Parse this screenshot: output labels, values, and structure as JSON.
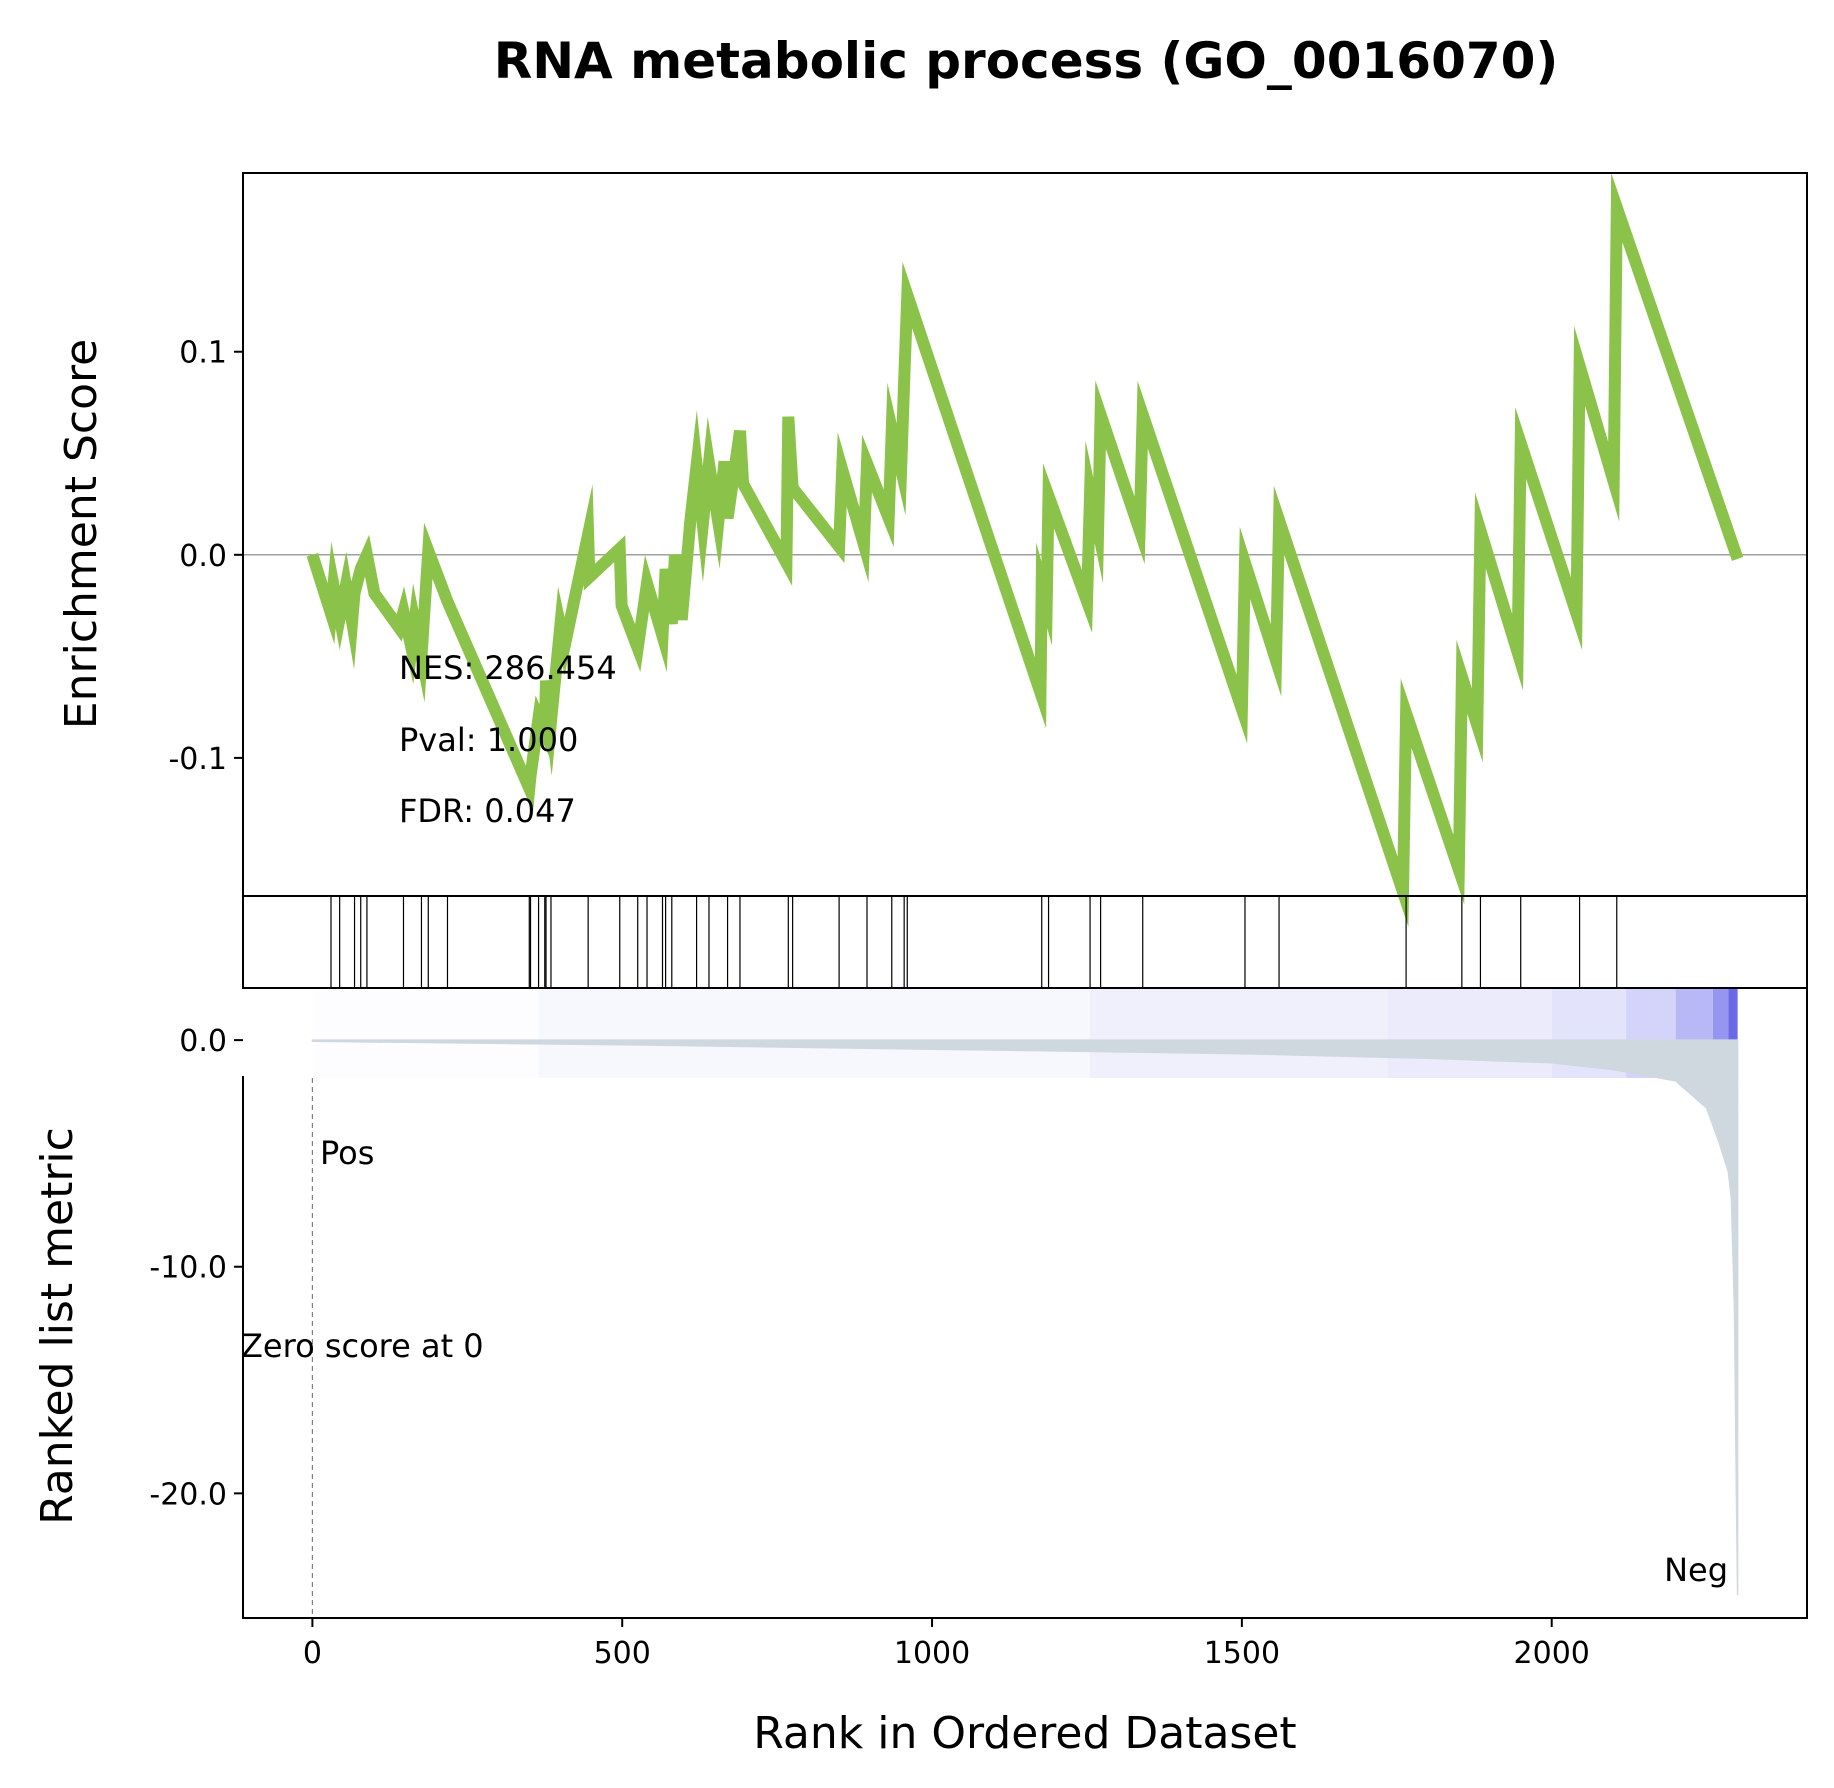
{
  "chart_data": {
    "type": "line",
    "title": "RNA metabolic process (GO_0016070)",
    "xlabel": "Rank in Ordered Dataset",
    "es_panel": {
      "ylabel": "Enrichment Score",
      "yticks": [
        0.1,
        0.0,
        -0.1
      ],
      "ytick_labels": [
        "0.1",
        "0.0",
        "-0.1"
      ],
      "ylim": [
        -0.168,
        0.188
      ],
      "line_color": "#8bc34a",
      "zero_line": true,
      "series": {
        "name": "",
        "x": [
          0,
          30,
          34,
          44,
          54,
          64,
          68,
          78,
          88,
          100,
          140,
          147,
          160,
          165,
          176,
          187,
          218,
          350,
          352,
          365,
          375,
          377,
          385,
          400,
          407,
          445,
          447,
          496,
          499,
          525,
          540,
          565,
          570,
          580,
          585,
          596,
          610,
          620,
          630,
          640,
          655,
          665,
          670,
          690,
          695,
          765,
          768,
          775,
          850,
          855,
          890,
          895,
          930,
          935,
          950,
          955,
          960,
          1175,
          1177,
          1185,
          1188,
          1250,
          1255,
          1268,
          1272,
          1335,
          1340,
          1500,
          1505,
          1555,
          1560,
          1760,
          1765,
          1850,
          1855,
          1880,
          1885,
          1945,
          1950,
          2040,
          2045,
          2100,
          2105,
          2300
        ],
        "y": [
          0.0,
          -0.029,
          -0.015,
          -0.031,
          -0.015,
          -0.033,
          -0.019,
          -0.007,
          0.0,
          -0.019,
          -0.036,
          -0.028,
          -0.046,
          -0.033,
          -0.05,
          0.002,
          -0.023,
          -0.115,
          -0.109,
          -0.08,
          -0.087,
          -0.062,
          -0.082,
          -0.035,
          -0.045,
          0.01,
          -0.011,
          0.003,
          -0.025,
          -0.046,
          -0.014,
          -0.04,
          -0.007,
          -0.034,
          0.0,
          -0.032,
          0.017,
          0.044,
          0.015,
          0.045,
          0.016,
          0.046,
          0.018,
          0.061,
          0.035,
          -0.004,
          0.068,
          0.033,
          0.004,
          0.042,
          0.005,
          0.045,
          0.018,
          0.062,
          0.042,
          0.086,
          0.128,
          -0.068,
          -0.015,
          -0.024,
          0.029,
          -0.023,
          0.031,
          0.012,
          0.069,
          0.012,
          0.069,
          -0.076,
          -0.004,
          -0.052,
          0.017,
          -0.166,
          -0.078,
          -0.155,
          -0.06,
          -0.084,
          0.012,
          -0.048,
          0.055,
          -0.029,
          0.093,
          0.036,
          0.171,
          -0.002
        ]
      }
    },
    "stats": {
      "nes": "NES: 286.454",
      "pval": "Pval: 1.000",
      "fdr": "FDR: 0.047"
    },
    "hits": [
      30,
      44,
      68,
      78,
      88,
      147,
      176,
      187,
      218,
      350,
      352,
      365,
      375,
      377,
      385,
      445,
      496,
      525,
      540,
      565,
      570,
      580,
      620,
      640,
      670,
      690,
      768,
      775,
      850,
      895,
      935,
      955,
      960,
      1177,
      1188,
      1255,
      1272,
      1340,
      1505,
      1560,
      1765,
      1855,
      1885,
      1950,
      2045,
      2105
    ],
    "heat_bar": {
      "segments": [
        {
          "from": 0,
          "to": 365,
          "color": "#fdfdff"
        },
        {
          "from": 365,
          "to": 1255,
          "color": "#f7f7fe"
        },
        {
          "from": 1255,
          "to": 1735,
          "color": "#f0f0fd"
        },
        {
          "from": 1735,
          "to": 2000,
          "color": "#ebebfc"
        },
        {
          "from": 2000,
          "to": 2120,
          "color": "#e3e3fb"
        },
        {
          "from": 2120,
          "to": 2200,
          "color": "#d4d4fa"
        },
        {
          "from": 2200,
          "to": 2260,
          "color": "#b8b8f6"
        },
        {
          "from": 2260,
          "to": 2285,
          "color": "#9696f0"
        },
        {
          "from": 2285,
          "to": 2300,
          "color": "#6a6ae6"
        }
      ]
    },
    "rank_panel": {
      "ylabel": "Ranked list metric",
      "yticks": [
        0.0,
        -10.0,
        -20.0
      ],
      "ytick_labels": [
        "0.0",
        "-10.0",
        "-20.0"
      ],
      "ylim": [
        -25.5,
        2.3
      ],
      "fill_color": "#cfd8df",
      "metric": {
        "x": [
          0,
          500,
          1000,
          1500,
          1800,
          2000,
          2100,
          2200,
          2250,
          2270,
          2285,
          2290,
          2295,
          2298,
          2300
        ],
        "y": [
          -0.05,
          -0.2,
          -0.4,
          -0.6,
          -0.8,
          -1.0,
          -1.3,
          -1.8,
          -3.0,
          -4.5,
          -5.8,
          -7.0,
          -12.0,
          -20.0,
          -24.5
        ]
      },
      "pos_label": "Pos",
      "neg_label": "Neg",
      "pos_color": "#ff0000",
      "neg_color": "#0000ee",
      "zero_score_text": "Zero score at 0",
      "zero_score_rank": 0
    },
    "xticks": [
      0,
      500,
      1000,
      1500,
      2000
    ],
    "xtick_labels": [
      "0",
      "500",
      "1000",
      "1500",
      "2000"
    ],
    "xlim": [
      -112,
      2412
    ]
  }
}
